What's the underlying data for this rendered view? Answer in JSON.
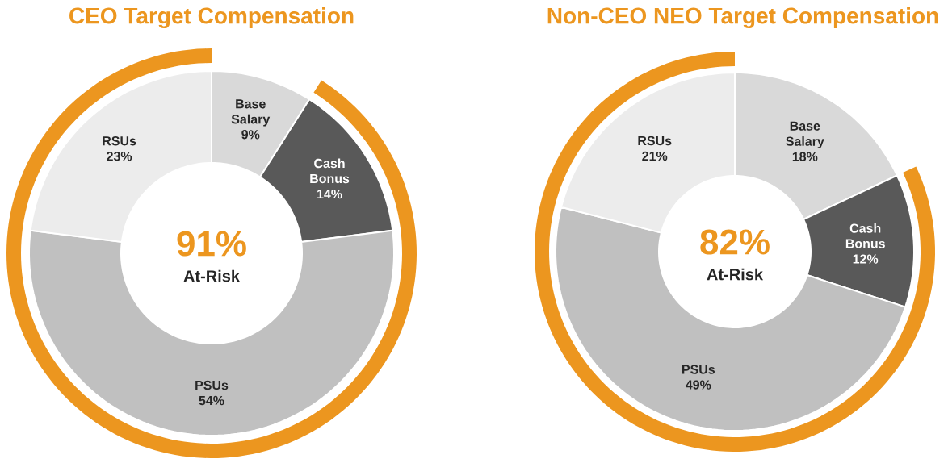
{
  "chart_data": [
    {
      "type": "donut",
      "title": "CEO Target Compensation",
      "categories": [
        "Base Salary",
        "Cash Bonus",
        "PSUs",
        "RSUs"
      ],
      "values": [
        9,
        14,
        54,
        23
      ],
      "value_labels": [
        "9%",
        "14%",
        "54%",
        "23%"
      ],
      "colors": [
        "#d9d9d9",
        "#595959",
        "#c0c0c0",
        "#ececec"
      ],
      "annotations": [
        "91%",
        "At-Risk"
      ]
    },
    {
      "type": "donut",
      "title": "Non-CEO NEO Target Compensation",
      "categories": [
        "Base Salary",
        "Cash Bonus",
        "PSUs",
        "RSUs"
      ],
      "values": [
        18,
        12,
        49,
        21
      ],
      "value_labels": [
        "18%",
        "12%",
        "49%",
        "21%"
      ],
      "colors": [
        "#d9d9d9",
        "#595959",
        "#c0c0c0",
        "#ececec"
      ],
      "annotations": [
        "82%",
        "At-Risk"
      ]
    }
  ]
}
